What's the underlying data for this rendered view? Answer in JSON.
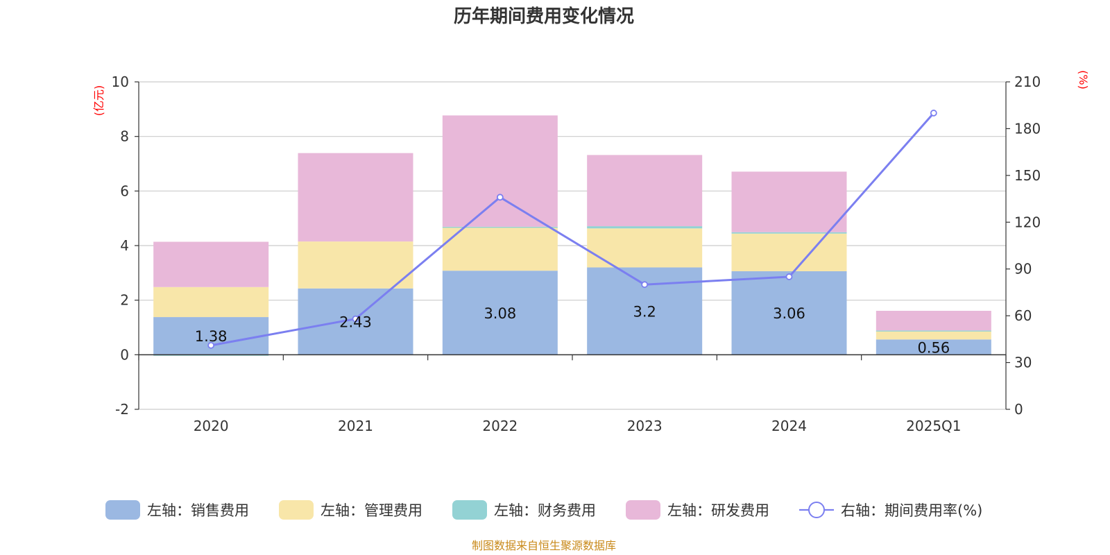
{
  "chart_data": {
    "type": "bar",
    "stacked": true,
    "title": "历年期间费用变化情况",
    "categories": [
      "2020",
      "2021",
      "2022",
      "2023",
      "2024",
      "2025Q1"
    ],
    "left_axis": {
      "unit": "(亿元)",
      "ylim": [
        -2,
        10
      ],
      "ticks": [
        "10",
        "8",
        "6",
        "4",
        "2",
        "0",
        "-2"
      ]
    },
    "right_axis": {
      "unit": "(%)",
      "ylim": [
        0,
        210
      ],
      "ticks": [
        "210",
        "180",
        "150",
        "120",
        "90",
        "60",
        "30",
        "0"
      ]
    },
    "series": [
      {
        "name": "左轴：销售费用",
        "color": "#9bb8e2",
        "values": [
          1.38,
          2.43,
          3.08,
          3.2,
          3.06,
          0.56
        ],
        "labels": [
          "1.38",
          "2.43",
          "3.08",
          "3.2",
          "3.06",
          "0.56"
        ]
      },
      {
        "name": "左轴：管理费用",
        "color": "#f8e6a9",
        "values": [
          1.1,
          1.72,
          1.58,
          1.43,
          1.38,
          0.32
        ]
      },
      {
        "name": "左轴：财务费用",
        "color": "#93d2d4",
        "values": [
          -0.03,
          0.0,
          0.03,
          0.08,
          0.05,
          0.01
        ]
      },
      {
        "name": "左轴：研发费用",
        "color": "#e8b8d9",
        "values": [
          1.66,
          3.24,
          4.08,
          2.61,
          2.22,
          0.72
        ]
      }
    ],
    "line_series": {
      "name": "右轴：期间费用率(%)",
      "color": "#7b7ff0",
      "values": [
        41,
        58,
        136,
        80,
        85,
        190
      ]
    },
    "source": "制图数据来自恒生聚源数据库"
  }
}
